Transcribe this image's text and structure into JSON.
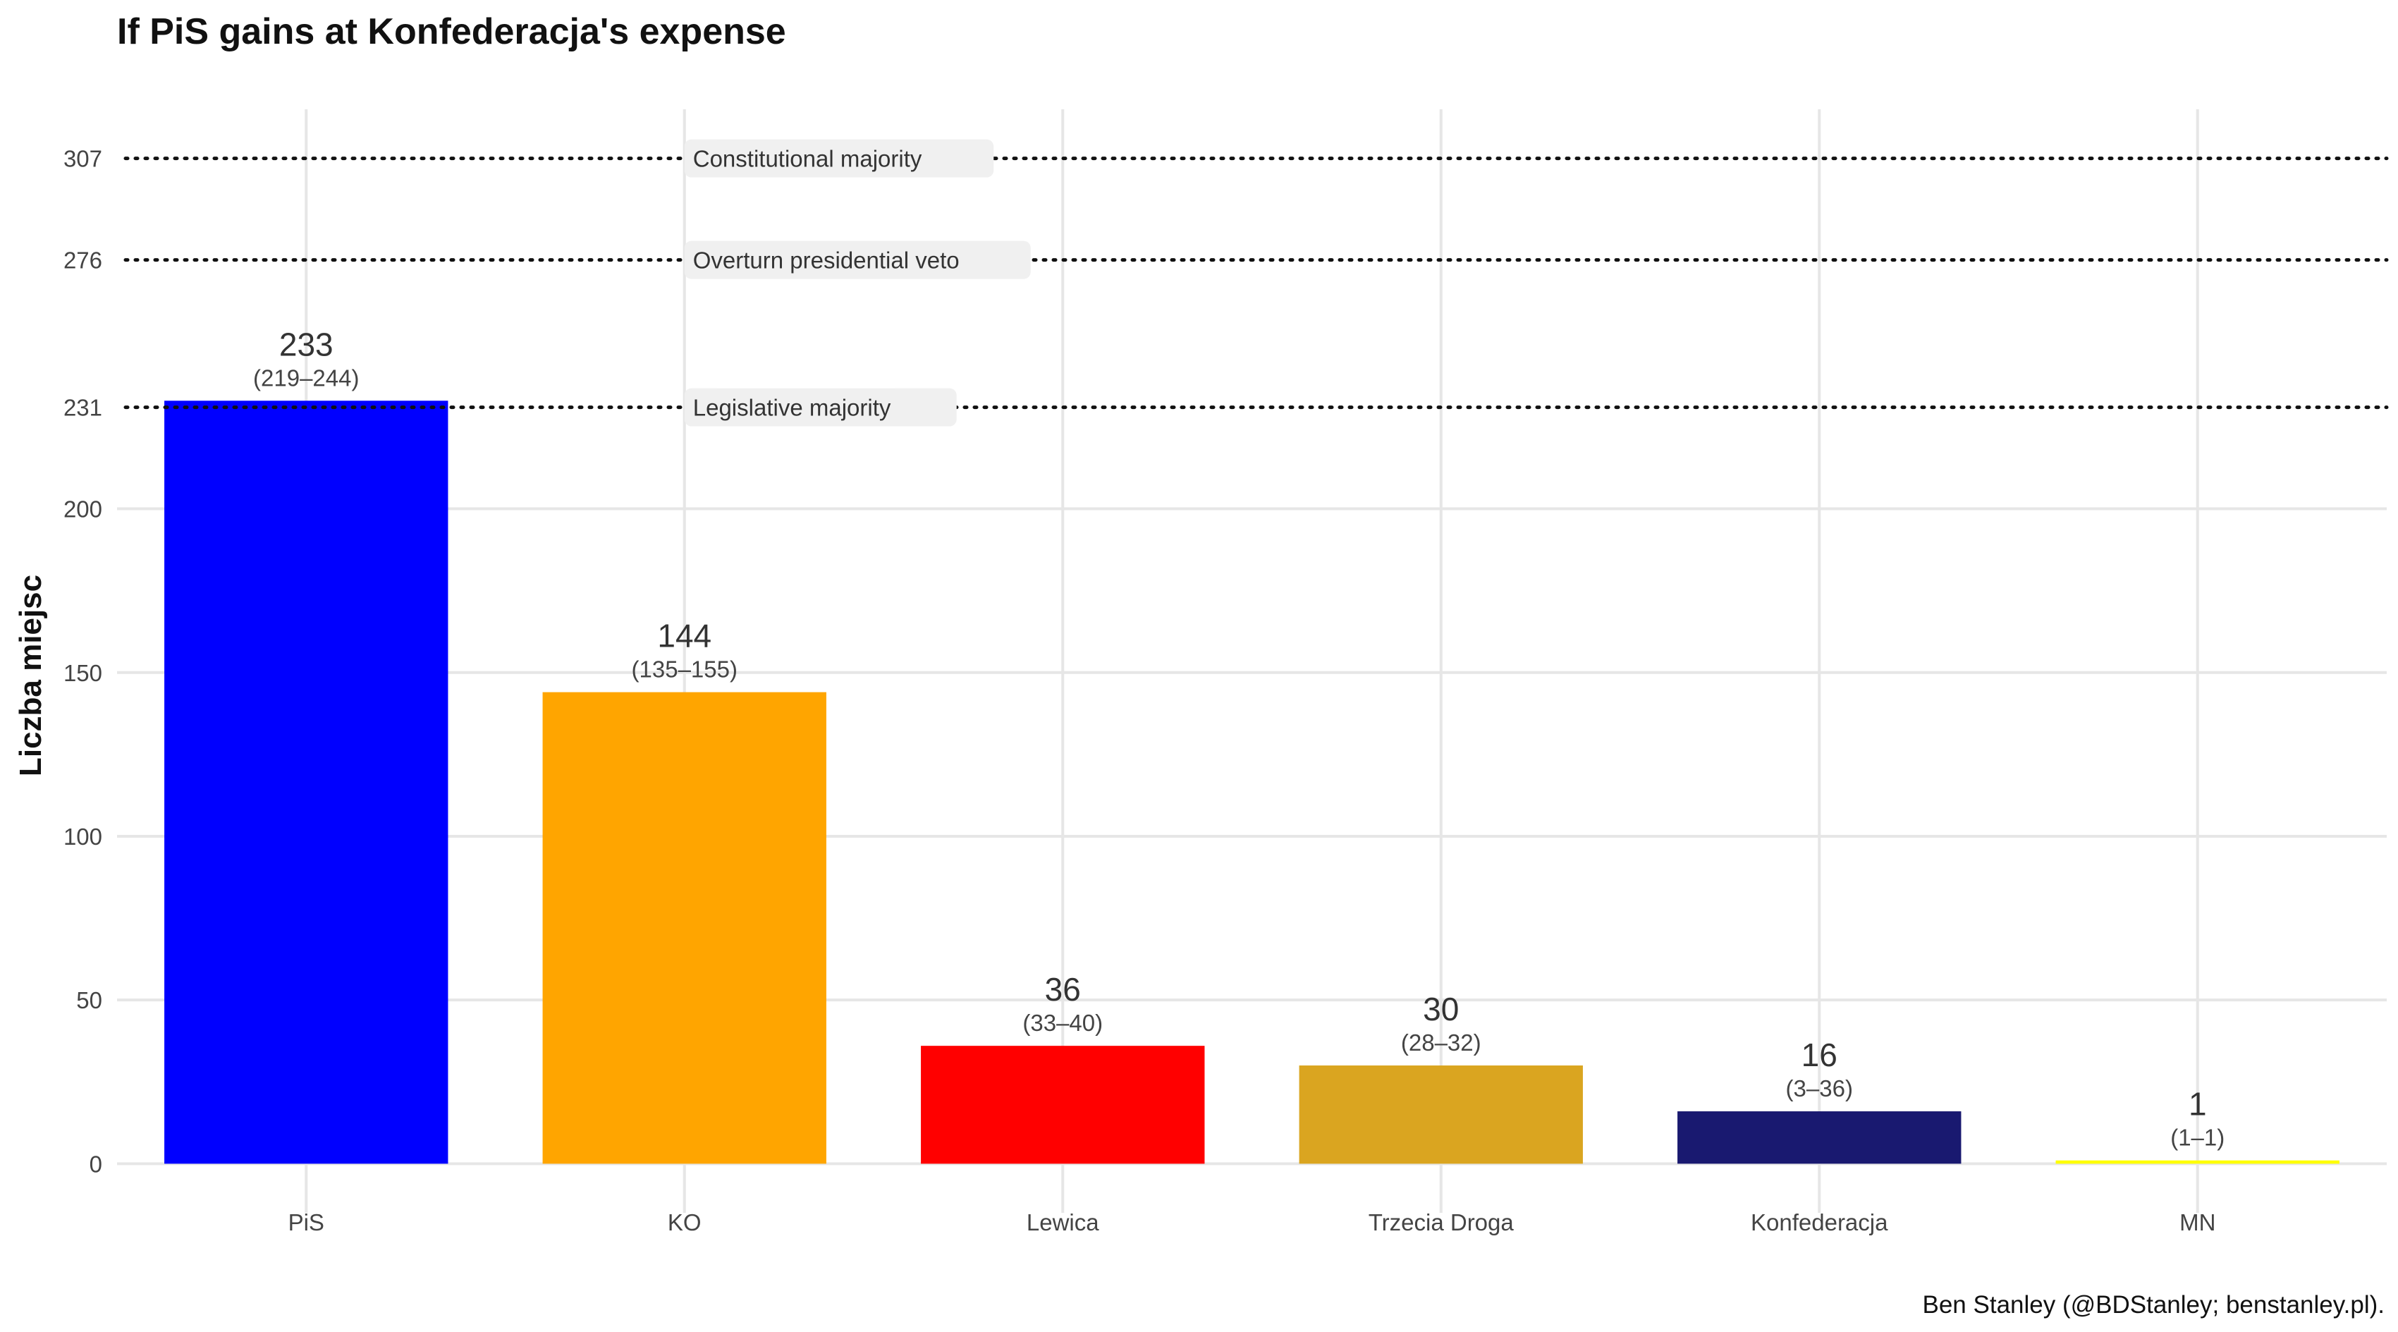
{
  "chart_data": {
    "type": "bar",
    "title": "If PiS gains at Konfederacja's expense",
    "ylabel": "Liczba miejsc",
    "xlabel": "",
    "categories": [
      "PiS",
      "KO",
      "Lewica",
      "Trzecia Droga",
      "Konfederacja",
      "MN"
    ],
    "values": [
      233,
      144,
      36,
      30,
      16,
      1
    ],
    "intervals": [
      "(219–244)",
      "(135–155)",
      "(33–40)",
      "(28–32)",
      "(3–36)",
      "(1–1)"
    ],
    "colors": [
      "#0000ff",
      "#ffa500",
      "#ff0000",
      "#daa520",
      "#191970",
      "#ffff00"
    ],
    "ylim": [
      -15,
      322
    ],
    "yticks": [
      0,
      50,
      100,
      150,
      200,
      231,
      276,
      307
    ],
    "reference_lines": [
      {
        "y": 307,
        "label": "Constitutional majority"
      },
      {
        "y": 276,
        "label": "Overturn presidential veto"
      },
      {
        "y": 231,
        "label": "Legislative majority"
      }
    ],
    "grid": true,
    "caption": "Ben Stanley (@BDStanley; benstanley.pl)."
  }
}
